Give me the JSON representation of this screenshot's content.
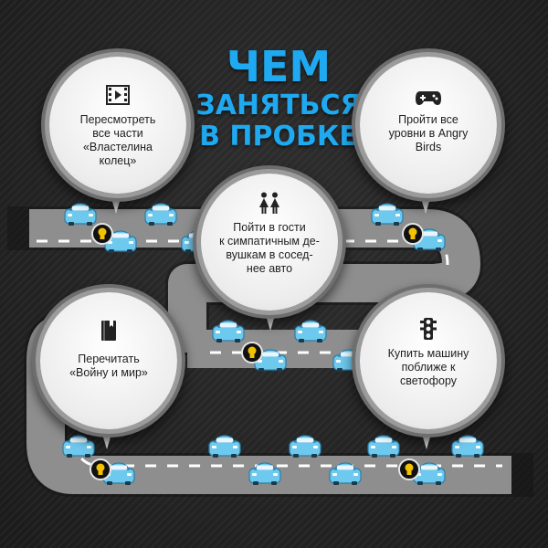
{
  "title": {
    "line1": "ЧЕМ",
    "line2": "ЗАНЯТЬСЯ",
    "line3": "В ПРОБКЕ"
  },
  "colors": {
    "accent": "#1fa9f0",
    "road": "#8e8e8e",
    "car": "#6ec9ee",
    "marker": "#f2c200"
  },
  "tips": [
    {
      "icon": "film-icon",
      "text": "Пересмотреть\nвсе части\n«Властелина\nколец»"
    },
    {
      "icon": "gamepad-icon",
      "text": "Пройти все\nуровни в Angry\nBirds"
    },
    {
      "icon": "couple-icon",
      "text": "Пойти в гости\nк симпатичным де-\nвушкам в сосед-\nнее авто"
    },
    {
      "icon": "book-icon",
      "text": "Перечитать\n«Войну и мир»"
    },
    {
      "icon": "traffic-light-icon",
      "text": "Купить машину\nпоближе к\nсветофору"
    }
  ]
}
